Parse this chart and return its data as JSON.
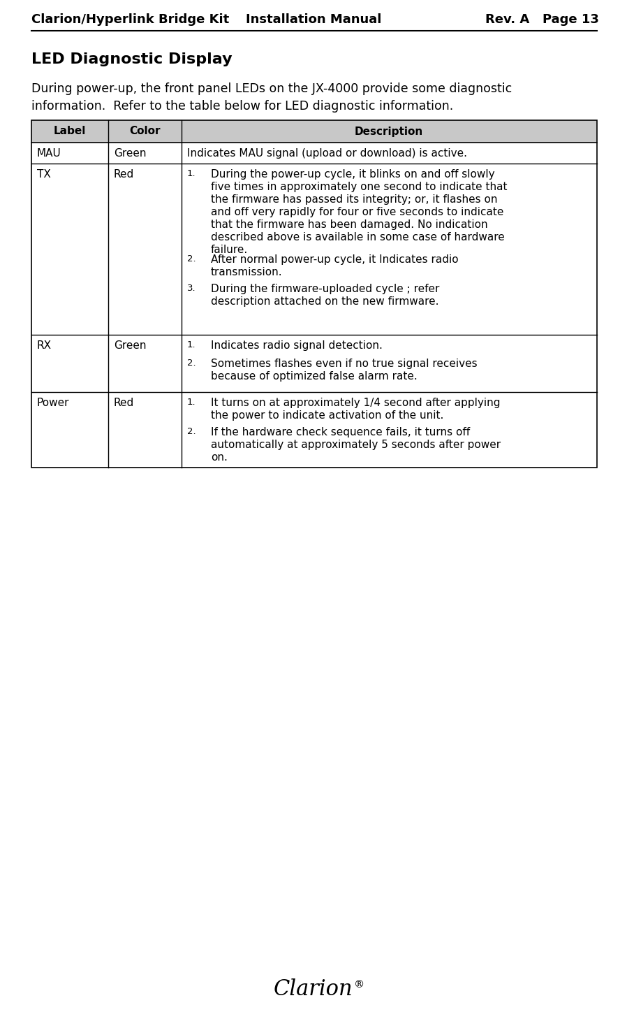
{
  "header_title": "Clarion/Hyperlink Bridge Kit",
  "header_center": "Installation Manual",
  "header_right": "Rev. A   Page 13",
  "section_title": "LED Diagnostic Display",
  "intro_line1": "During power-up, the front panel LEDs on the JX-4000 provide some diagnostic",
  "intro_line2": "information.  Refer to the table below for LED diagnostic information.",
  "table_headers": [
    "Label",
    "Color",
    "Description"
  ],
  "table_rows": [
    {
      "label": "MAU",
      "color": "Green",
      "description_simple": "Indicates MAU signal (upload or download) is active."
    },
    {
      "label": "TX",
      "color": "Red",
      "description_list": [
        "During the power-up cycle, it blinks on and off slowly\nfive times in approximately one second to indicate that\nthe firmware has passed its integrity; or, it flashes on\nand off very rapidly for four or five seconds to indicate\nthat the firmware has been damaged. No indication\ndescribed above is available in some case of hardware\nfailure.",
        "After normal power-up cycle, it Indicates radio\ntransmission.",
        "During the firmware-uploaded cycle ; refer\ndescription attached on the new firmware."
      ]
    },
    {
      "label": "RX",
      "color": "Green",
      "description_list": [
        "Indicates radio signal detection.",
        "Sometimes flashes even if no true signal receives\nbecause of optimized false alarm rate."
      ]
    },
    {
      "label": "Power",
      "color": "Red",
      "description_list": [
        "It turns on at approximately 1/4 second after applying\nthe power to indicate activation of the unit.",
        "If the hardware check sequence fails, it turns off\nautomatically at approximately 5 seconds after power\non."
      ]
    }
  ],
  "footer_text": "Clarion",
  "footer_reg": "®",
  "bg_color": "#ffffff",
  "table_header_bg": "#c8c8c8",
  "table_border_color": "#000000",
  "text_color": "#000000"
}
